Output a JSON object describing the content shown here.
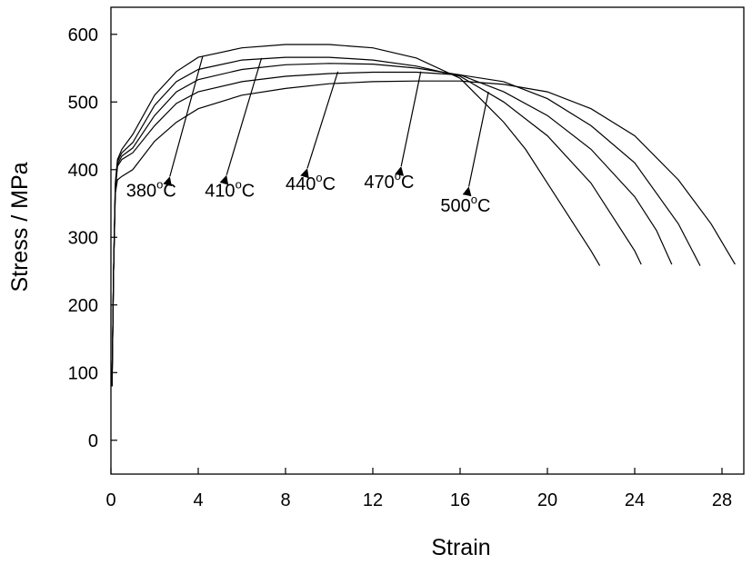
{
  "chart_data": {
    "type": "line",
    "xlabel": "Strain",
    "ylabel": "Stress / MPa",
    "xlim": [
      0,
      29
    ],
    "ylim": [
      -50,
      640
    ],
    "x_ticks": [
      0,
      4,
      8,
      12,
      16,
      20,
      24,
      28
    ],
    "y_ticks": [
      0,
      100,
      200,
      300,
      400,
      500,
      600
    ],
    "grid": false,
    "legend": "none",
    "series": [
      {
        "points": [
          [
            0.05,
            80
          ],
          [
            0.12,
            250
          ],
          [
            0.2,
            380
          ],
          [
            0.3,
            415
          ],
          [
            0.5,
            430
          ],
          [
            1.0,
            452
          ],
          [
            2,
            510
          ],
          [
            3,
            545
          ],
          [
            4,
            566
          ],
          [
            6,
            580
          ],
          [
            8,
            585
          ],
          [
            10,
            585
          ],
          [
            12,
            580
          ],
          [
            14,
            565
          ],
          [
            16,
            535
          ],
          [
            18,
            470
          ],
          [
            19,
            430
          ],
          [
            20,
            380
          ],
          [
            21,
            330
          ],
          [
            22,
            280
          ],
          [
            22.4,
            258
          ]
        ]
      },
      {
        "points": [
          [
            0.05,
            80
          ],
          [
            0.12,
            250
          ],
          [
            0.2,
            375
          ],
          [
            0.3,
            412
          ],
          [
            0.5,
            425
          ],
          [
            1.0,
            440
          ],
          [
            2,
            495
          ],
          [
            3,
            530
          ],
          [
            4,
            548
          ],
          [
            6,
            562
          ],
          [
            8,
            566
          ],
          [
            10,
            566
          ],
          [
            12,
            562
          ],
          [
            14,
            553
          ],
          [
            16,
            538
          ],
          [
            18,
            500
          ],
          [
            20,
            450
          ],
          [
            22,
            380
          ],
          [
            23,
            330
          ],
          [
            24,
            280
          ],
          [
            24.3,
            260
          ]
        ]
      },
      {
        "points": [
          [
            0.05,
            80
          ],
          [
            0.12,
            250
          ],
          [
            0.2,
            372
          ],
          [
            0.3,
            408
          ],
          [
            0.5,
            420
          ],
          [
            1.0,
            432
          ],
          [
            2,
            480
          ],
          [
            3,
            515
          ],
          [
            4,
            533
          ],
          [
            6,
            548
          ],
          [
            8,
            555
          ],
          [
            10,
            557
          ],
          [
            12,
            556
          ],
          [
            14,
            550
          ],
          [
            16,
            540
          ],
          [
            18,
            515
          ],
          [
            20,
            480
          ],
          [
            22,
            430
          ],
          [
            24,
            360
          ],
          [
            25,
            310
          ],
          [
            25.7,
            260
          ]
        ]
      },
      {
        "points": [
          [
            0.05,
            80
          ],
          [
            0.12,
            250
          ],
          [
            0.2,
            370
          ],
          [
            0.3,
            405
          ],
          [
            0.5,
            415
          ],
          [
            1.0,
            425
          ],
          [
            2,
            465
          ],
          [
            3,
            498
          ],
          [
            4,
            515
          ],
          [
            6,
            530
          ],
          [
            8,
            538
          ],
          [
            10,
            542
          ],
          [
            12,
            544
          ],
          [
            14,
            544
          ],
          [
            16,
            540
          ],
          [
            18,
            530
          ],
          [
            20,
            505
          ],
          [
            22,
            465
          ],
          [
            24,
            410
          ],
          [
            26,
            320
          ],
          [
            27,
            258
          ]
        ]
      },
      {
        "points": [
          [
            0.05,
            80
          ],
          [
            0.12,
            250
          ],
          [
            0.2,
            365
          ],
          [
            0.3,
            385
          ],
          [
            0.5,
            390
          ],
          [
            1.0,
            400
          ],
          [
            2,
            442
          ],
          [
            3,
            470
          ],
          [
            4,
            490
          ],
          [
            6,
            510
          ],
          [
            8,
            520
          ],
          [
            10,
            527
          ],
          [
            12,
            530
          ],
          [
            14,
            531
          ],
          [
            16,
            531
          ],
          [
            18,
            526
          ],
          [
            20,
            515
          ],
          [
            22,
            490
          ],
          [
            24,
            450
          ],
          [
            26,
            385
          ],
          [
            27.5,
            320
          ],
          [
            28.6,
            260
          ]
        ]
      }
    ],
    "annotations": [
      {
        "base": "380",
        "sup": "o",
        "unit": "C",
        "text_at": [
          0.7,
          360
        ],
        "arrow_from": [
          2.7,
          390
        ],
        "arrow_to": [
          4.2,
          567
        ]
      },
      {
        "base": "410",
        "sup": "o",
        "unit": "C",
        "text_at": [
          4.3,
          360
        ],
        "arrow_from": [
          5.3,
          392
        ],
        "arrow_to": [
          6.9,
          565
        ]
      },
      {
        "base": "440",
        "sup": "o",
        "unit": "C",
        "text_at": [
          8.0,
          370
        ],
        "arrow_from": [
          9.0,
          402
        ],
        "arrow_to": [
          10.4,
          545
        ]
      },
      {
        "base": "470",
        "sup": "o",
        "unit": "C",
        "text_at": [
          11.6,
          373
        ],
        "arrow_from": [
          13.3,
          405
        ],
        "arrow_to": [
          14.2,
          545
        ]
      },
      {
        "base": "500",
        "sup": "o",
        "unit": "C",
        "text_at": [
          15.1,
          338
        ],
        "arrow_from": [
          16.4,
          375
        ],
        "arrow_to": [
          17.3,
          515
        ]
      }
    ]
  }
}
